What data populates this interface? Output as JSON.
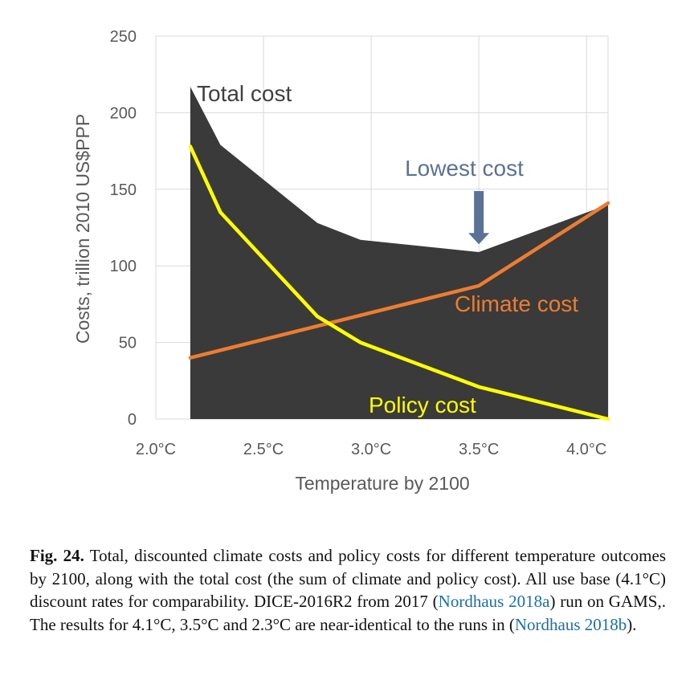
{
  "chart_data": {
    "type": "area",
    "title": "",
    "xlabel": "Temperature by 2100",
    "ylabel": "Costs, trillion 2010 US$PPP",
    "x_ticks": [
      {
        "value": 2.0,
        "label": "2.0°C"
      },
      {
        "value": 2.5,
        "label": "2.5°C"
      },
      {
        "value": 3.0,
        "label": "3.0°C"
      },
      {
        "value": 3.5,
        "label": "3.5°C"
      },
      {
        "value": 4.0,
        "label": "4.0°C"
      }
    ],
    "y_ticks": [
      {
        "value": 0,
        "label": "0"
      },
      {
        "value": 50,
        "label": "50"
      },
      {
        "value": 100,
        "label": "100"
      },
      {
        "value": 150,
        "label": "150"
      },
      {
        "value": 200,
        "label": "200"
      },
      {
        "value": 250,
        "label": "250"
      }
    ],
    "xlim": [
      2.0,
      4.1
    ],
    "ylim": [
      0,
      250
    ],
    "grid": true,
    "series": [
      {
        "name": "Total cost",
        "type": "area",
        "color": "#3a3a3a",
        "x": [
          2.16,
          2.3,
          2.75,
          2.95,
          3.5,
          4.1
        ],
        "y": [
          217,
          179,
          128,
          117,
          109,
          140
        ]
      },
      {
        "name": "Climate cost",
        "type": "line",
        "color": "#ed7d31",
        "x": [
          2.16,
          3.5,
          4.1
        ],
        "y": [
          40,
          87,
          141
        ]
      },
      {
        "name": "Policy cost",
        "type": "line",
        "color": "#ffff00",
        "x": [
          2.16,
          2.3,
          2.75,
          2.95,
          3.5,
          4.1
        ],
        "y": [
          178,
          135,
          67,
          50,
          21,
          0
        ]
      }
    ],
    "annotations": [
      {
        "text": "Total cost",
        "color": "#404040"
      },
      {
        "text": "Lowest cost",
        "color": "#5b7196",
        "arrow_x": 3.5,
        "arrow_y": 112
      },
      {
        "text": "Climate cost",
        "color": "#ed7d31"
      },
      {
        "text": "Policy cost",
        "color": "#ffff00"
      }
    ]
  },
  "caption": {
    "label": "Fig. 24.",
    "text_1": " Total, discounted climate costs and policy costs for different temperature outcomes by 2100, along with the total cost (the sum of climate and policy cost). All use base (4.1°C) discount rates for comparability. DICE-2016R2 from 2017 (",
    "link_1": "Nordhaus 2018a",
    "text_2": ") run on GAMS,. The results for 4.1°C, 3.5°C and 2.3°C are near-identical to the runs in (",
    "link_2": "Nordhaus 2018b",
    "text_3": ")."
  }
}
